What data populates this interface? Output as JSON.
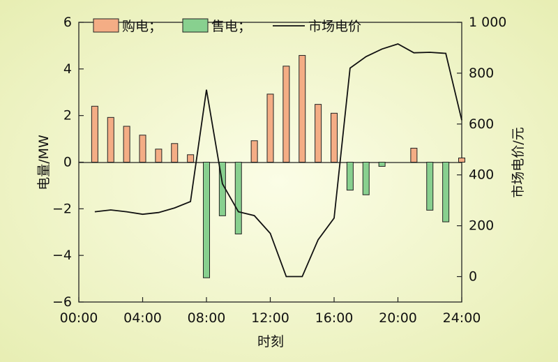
{
  "colors": {
    "background_center": "#fbfde6",
    "background_edge": "#e6edb0",
    "buy": "#f4ad85",
    "sell": "#88d08f",
    "price": "#111111"
  },
  "chart_data": {
    "type": "bar+line",
    "xlabel": "时刻",
    "ylabel": "电量/MW",
    "y2label": "市场电价/元",
    "x_ticks": [
      "00:00",
      "04:00",
      "08:00",
      "12:00",
      "16:00",
      "20:00",
      "24:00"
    ],
    "x_range": [
      0,
      24
    ],
    "ylim": [
      -6,
      6
    ],
    "y_ticks": [
      "−6",
      "−4",
      "−2",
      "0",
      "2",
      "4",
      "6"
    ],
    "y2lim": [
      -100,
      1000
    ],
    "y2_ticks": [
      "0",
      "200",
      "400",
      "600",
      "800",
      "1 000"
    ],
    "legend": {
      "buy": "购电；",
      "sell": "售电；",
      "price": "市场电价"
    },
    "hours": [
      1,
      2,
      3,
      4,
      5,
      6,
      7,
      8,
      9,
      10,
      11,
      12,
      13,
      14,
      15,
      16,
      17,
      18,
      19,
      20,
      21,
      22,
      23,
      24
    ],
    "series": [
      {
        "name": "购电",
        "values": [
          2.4,
          1.92,
          1.54,
          1.16,
          0.56,
          0.8,
          0.32,
          0,
          0,
          0,
          0.92,
          2.92,
          4.12,
          4.58,
          2.48,
          2.1,
          0,
          0,
          0,
          0,
          0.6,
          0,
          0,
          0.18
        ]
      },
      {
        "name": "售电",
        "values": [
          0,
          0,
          0,
          0,
          0,
          0,
          0,
          -4.96,
          -2.3,
          -3.08,
          0,
          0,
          0,
          0,
          0,
          0,
          -1.2,
          -1.4,
          -0.18,
          0,
          0,
          -2.06,
          -2.56,
          0
        ]
      },
      {
        "name": "市场电价",
        "values": [
          255,
          262,
          255,
          245,
          252,
          270,
          295,
          735,
          365,
          255,
          240,
          170,
          0,
          0,
          145,
          230,
          820,
          865,
          895,
          915,
          880,
          882,
          878,
          615
        ]
      }
    ]
  }
}
